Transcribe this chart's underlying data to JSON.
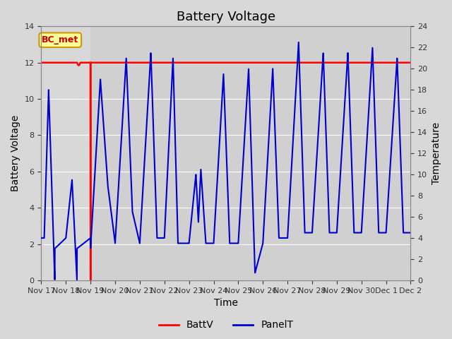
{
  "title": "Battery Voltage",
  "xlabel": "Time",
  "ylabel_left": "Battery Voltage",
  "ylabel_right": "Temperature",
  "annotation_text": "BC_met",
  "annotation_color": "#cc0000",
  "annotation_bg": "#ffff99",
  "annotation_border": "#cc9900",
  "x_tick_labels": [
    "Nov 17",
    "Nov 18",
    "Nov 19",
    "Nov 20",
    "Nov 21",
    "Nov 22",
    "Nov 23",
    "Nov 24",
    "Nov 25",
    "Nov 26",
    "Nov 27",
    "Nov 28",
    "Nov 29",
    "Nov 30",
    "Dec 1",
    "Dec 2"
  ],
  "ylim_left": [
    0,
    14
  ],
  "ylim_right": [
    0,
    24
  ],
  "yticks_left": [
    0,
    2,
    4,
    6,
    8,
    10,
    12,
    14
  ],
  "yticks_right": [
    0,
    2,
    4,
    6,
    8,
    10,
    12,
    14,
    16,
    18,
    20,
    22,
    24
  ],
  "batt_color": "#ff0000",
  "panel_color": "#0000cc",
  "legend_labels": [
    "BattV",
    "PanelT"
  ],
  "background_color": "#d8d8d8",
  "title_fontsize": 13,
  "axis_label_fontsize": 10,
  "tick_fontsize": 8
}
